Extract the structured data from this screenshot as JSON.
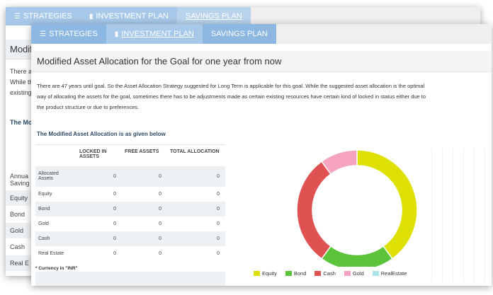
{
  "back_window": {
    "tabs": [
      {
        "label": "STRATEGIES"
      },
      {
        "label": "INVESTMENT PLAN"
      },
      {
        "label": "SAVINGS PLAN"
      }
    ],
    "header_fragment": "Modifi",
    "text_fragments": [
      "There are",
      "While th",
      "existing"
    ],
    "subhead_fragment": "The Modi",
    "row_labels": [
      "Annua",
      "Saving",
      "Equity",
      "Bond",
      "Gold",
      "Cash",
      "Real E"
    ]
  },
  "front_window": {
    "tabs": [
      {
        "label": "STRATEGIES"
      },
      {
        "label": "INVESTMENT PLAN"
      },
      {
        "label": "SAVINGS PLAN"
      }
    ],
    "title": "Modified Asset Allocation for the Goal for one year from now",
    "description": "There are 47 years until goal. So the Asset Allocation Strategy suggested for Long Term is applicable for this goal. While the suggested asset allocation is the optimal way of allocating the assets for the goal, sometimes there has to be adjustments made as certain existing resources have certain kind of locked in status either due to the product structure or due to preferences.",
    "subhead": "The Modified Asset Allocation is as given below",
    "table": {
      "columns": [
        "",
        "LOCKED IN ASSETS",
        "FREE ASSETS",
        "TOTAL ALLOCATION"
      ],
      "rows": [
        {
          "label": "Allocated Assets",
          "locked": "0",
          "free": "0",
          "total": "0"
        },
        {
          "label": "Equity",
          "locked": "0",
          "free": "0",
          "total": "0"
        },
        {
          "label": "Bond",
          "locked": "0",
          "free": "0",
          "total": "0"
        },
        {
          "label": "Gold",
          "locked": "0",
          "free": "0",
          "total": "0"
        },
        {
          "label": "Cash",
          "locked": "0",
          "free": "0",
          "total": "0"
        },
        {
          "label": "Real Estate",
          "locked": "0",
          "free": "0",
          "total": "0"
        }
      ]
    },
    "currency_note": "* Currency in \"INR\""
  },
  "chart_data": {
    "type": "pie",
    "donut": true,
    "title": "",
    "categories": [
      "Equity",
      "Bond",
      "Cash",
      "Gold",
      "RealEstate"
    ],
    "values": [
      40,
      20,
      30,
      10,
      0
    ],
    "colors": [
      "#dde000",
      "#5cc43a",
      "#e05252",
      "#f5a3c0",
      "#a8e4e8"
    ],
    "legend_position": "bottom"
  }
}
